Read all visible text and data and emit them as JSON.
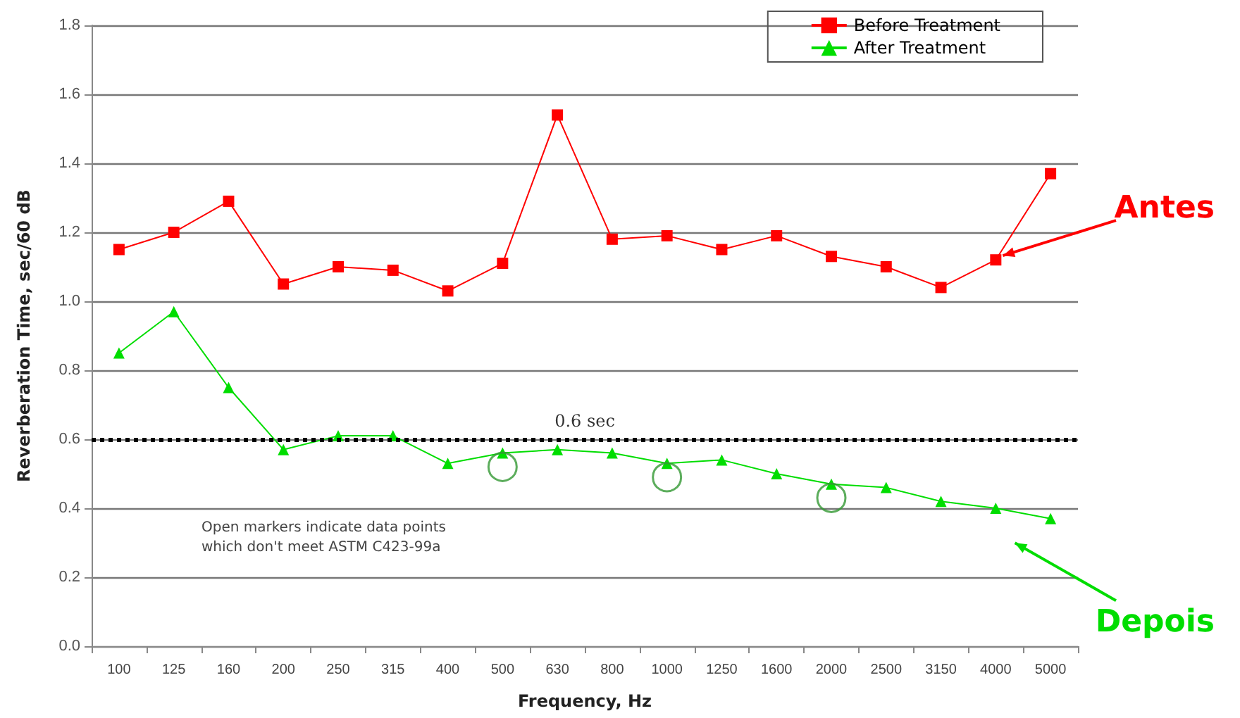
{
  "chart_data": {
    "type": "line",
    "xlabel": "Frequency, Hz",
    "ylabel": "Reverberation Time, sec/60 dB",
    "categories": [
      "100",
      "125",
      "160",
      "200",
      "250",
      "315",
      "400",
      "500",
      "630",
      "800",
      "1000",
      "1250",
      "1600",
      "2000",
      "2500",
      "3150",
      "4000",
      "5000"
    ],
    "series": [
      {
        "name": "Before Treatment",
        "color": "#ff0000",
        "marker": "square",
        "values": [
          1.15,
          1.2,
          1.29,
          1.05,
          1.1,
          1.09,
          1.03,
          1.11,
          1.54,
          1.18,
          1.19,
          1.15,
          1.19,
          1.13,
          1.1,
          1.04,
          1.12,
          1.37
        ]
      },
      {
        "name": "After Treatment",
        "color": "#00dd00",
        "marker": "triangle",
        "values": [
          0.85,
          0.97,
          0.75,
          0.57,
          0.61,
          0.61,
          0.53,
          0.56,
          0.57,
          0.56,
          0.53,
          0.54,
          0.5,
          0.47,
          0.46,
          0.42,
          0.4,
          0.37
        ]
      },
      {
        "type": "scatter",
        "color": "#339933",
        "marker": "circle",
        "values": [
          null,
          null,
          null,
          null,
          null,
          null,
          null,
          0.52,
          null,
          null,
          0.49,
          null,
          null,
          0.43,
          null,
          null,
          null,
          null
        ]
      }
    ],
    "ylim": [
      0,
      1.8
    ],
    "yticks": [
      {
        "value": 0,
        "label": "0.0"
      },
      0.2,
      0.4,
      0.6,
      0.8,
      {
        "value": 1,
        "label": "1.0"
      },
      1.2,
      1.4,
      1.6,
      1.8
    ],
    "ref_lines": [
      {
        "axis": "y",
        "value": 0.6,
        "label": "0.6 sec",
        "color": "#000000",
        "line_style": "dotted"
      }
    ],
    "annotations": [
      {
        "text": "Antes",
        "x": "4000",
        "y": 1.12
      },
      "Depois",
      "Open markers indicate data points\nwhich don't meet ASTM C423-99a"
    ],
    "grid": "y",
    "legend": "top right",
    "line_style": "solid"
  }
}
